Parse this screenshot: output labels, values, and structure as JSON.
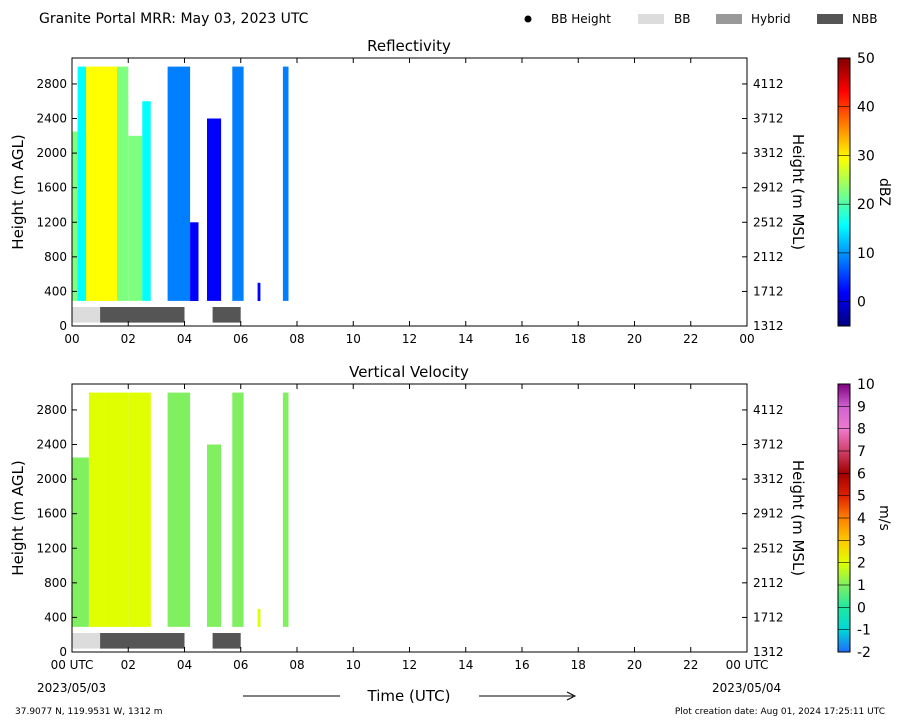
{
  "header": {
    "title": "Granite Portal MRR:  May 03, 2023 UTC",
    "legend": [
      {
        "label": "BB Height",
        "kind": "dot",
        "color": "#000000"
      },
      {
        "label": "BB",
        "kind": "box",
        "color": "#dcdcdc"
      },
      {
        "label": "Hybrid",
        "kind": "box",
        "color": "#999999"
      },
      {
        "label": "NBB",
        "kind": "box",
        "color": "#555555"
      }
    ]
  },
  "footer": {
    "location": "37.9077 N, 119.9531 W, 1312 m",
    "created": "Plot creation date: Aug 01, 2024 17:25:11 UTC",
    "time_label": "Time (UTC)",
    "start_date": "2023/05/03",
    "end_date": "2023/05/04"
  },
  "chart_data": [
    {
      "type": "heatmap",
      "title": "Reflectivity",
      "ylabel": "Height (m AGL)",
      "ylabel_right": "Height (m MSL)",
      "colorbar_label": "dBZ",
      "x_ticks": [
        "00",
        "02",
        "04",
        "06",
        "08",
        "10",
        "12",
        "14",
        "16",
        "18",
        "20",
        "22",
        "00"
      ],
      "xlim_hours": [
        0,
        24
      ],
      "y_ticks": [
        0,
        400,
        800,
        1200,
        1600,
        2000,
        2400,
        2800
      ],
      "y_ticks_msl": [
        1312,
        1712,
        2112,
        2512,
        2912,
        3312,
        3712,
        4112
      ],
      "ylim": [
        0,
        3100
      ],
      "colorbar_range": [
        -5,
        50
      ],
      "colorbar_ticks": [
        0,
        10,
        20,
        30,
        40,
        50
      ],
      "colorbar_colors": [
        "#00007f",
        "#0000ff",
        "#007fff",
        "#00ffff",
        "#7fff7f",
        "#ffff00",
        "#ff7f00",
        "#ff0000",
        "#7f0000"
      ],
      "rain_segments": [
        {
          "start": 0.0,
          "end": 1.2,
          "value": 22,
          "top": 2250
        },
        {
          "start": 0.2,
          "end": 0.5,
          "value": 18,
          "top": 3000
        },
        {
          "start": 0.5,
          "end": 0.9,
          "value": 26,
          "top": 3000
        },
        {
          "start": 0.9,
          "end": 1.6,
          "value": 28,
          "top": 3000
        },
        {
          "start": 1.6,
          "end": 2.0,
          "value": 24,
          "top": 3000
        },
        {
          "start": 2.0,
          "end": 2.5,
          "value": 20,
          "top": 2200
        },
        {
          "start": 2.5,
          "end": 2.8,
          "value": 14,
          "top": 2600
        },
        {
          "start": 3.4,
          "end": 4.2,
          "value": 12,
          "top": 3000
        },
        {
          "start": 4.2,
          "end": 4.5,
          "value": 4,
          "top": 1200
        },
        {
          "start": 4.8,
          "end": 5.3,
          "value": 6,
          "top": 2400
        },
        {
          "start": 5.7,
          "end": 6.1,
          "value": 10,
          "top": 3000
        },
        {
          "start": 6.6,
          "end": 6.7,
          "value": 2,
          "top": 500
        },
        {
          "start": 7.5,
          "end": 7.7,
          "value": 12,
          "top": 3000
        }
      ],
      "melting_layer": [
        {
          "start": 0.0,
          "end": 1.0,
          "type": "BB"
        },
        {
          "start": 1.0,
          "end": 4.0,
          "type": "NBB"
        },
        {
          "start": 5.0,
          "end": 6.0,
          "type": "NBB"
        }
      ]
    },
    {
      "type": "heatmap",
      "title": "Vertical Velocity",
      "ylabel": "Height (m AGL)",
      "ylabel_right": "Height (m MSL)",
      "colorbar_label": "m/s",
      "x_ticks": [
        "00 UTC",
        "02",
        "04",
        "06",
        "08",
        "10",
        "12",
        "14",
        "16",
        "18",
        "20",
        "22",
        "00 UTC"
      ],
      "xlim_hours": [
        0,
        24
      ],
      "y_ticks": [
        0,
        400,
        800,
        1200,
        1600,
        2000,
        2400,
        2800
      ],
      "y_ticks_msl": [
        1312,
        1712,
        2112,
        2512,
        2912,
        3312,
        3712,
        4112
      ],
      "ylim": [
        0,
        3100
      ],
      "colorbar_range": [
        -2,
        10
      ],
      "colorbar_ticks": [
        -2,
        -1,
        0,
        1,
        2,
        3,
        4,
        5,
        6,
        7,
        8,
        9,
        10
      ],
      "colorbar_colors": [
        "#1e6cff",
        "#00d7d7",
        "#20e8a0",
        "#80f060",
        "#e0ff00",
        "#ffc800",
        "#ff8000",
        "#e02000",
        "#a00000",
        "#d0406a",
        "#f07ad0",
        "#d060d0",
        "#800080"
      ],
      "rain_segments": [
        {
          "start": 0.0,
          "end": 0.6,
          "value": 1.5,
          "top": 2250
        },
        {
          "start": 0.6,
          "end": 1.2,
          "value": 2.5,
          "top": 3000
        },
        {
          "start": 1.2,
          "end": 2.0,
          "value": 2.2,
          "top": 3000
        },
        {
          "start": 2.0,
          "end": 2.8,
          "value": 1.8,
          "top": 3000
        },
        {
          "start": 3.4,
          "end": 4.2,
          "value": 1.0,
          "top": 3000
        },
        {
          "start": 4.8,
          "end": 5.3,
          "value": 1.2,
          "top": 2400
        },
        {
          "start": 5.7,
          "end": 6.1,
          "value": 0.8,
          "top": 3000
        },
        {
          "start": 6.6,
          "end": 6.7,
          "value": 2.0,
          "top": 500
        },
        {
          "start": 7.5,
          "end": 7.7,
          "value": 1.2,
          "top": 3000
        }
      ],
      "melting_layer": [
        {
          "start": 0.0,
          "end": 1.0,
          "type": "BB"
        },
        {
          "start": 1.0,
          "end": 4.0,
          "type": "NBB"
        },
        {
          "start": 5.0,
          "end": 6.0,
          "type": "NBB"
        }
      ]
    }
  ]
}
